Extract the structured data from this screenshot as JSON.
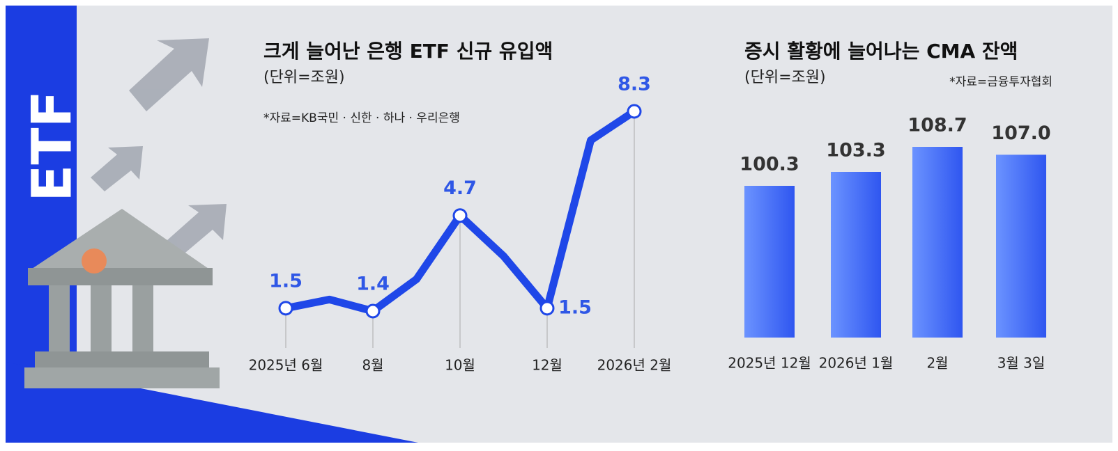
{
  "sidebar": {
    "label": "ETF"
  },
  "chart_data": [
    {
      "type": "line",
      "title": "크게 늘어난 은행 ETF 신규 유입액",
      "subtitle": "(단위=조원)",
      "source": "*자료=KB국민 · 신한 · 하나 · 우리은행",
      "categories": [
        "2025년 6월",
        null,
        "8월",
        null,
        "10월",
        null,
        "12월",
        null,
        "2026년 2월"
      ],
      "values": [
        1.5,
        1.8,
        1.4,
        2.5,
        4.7,
        3.3,
        1.5,
        7.3,
        8.3
      ],
      "color": "#1f47e8",
      "label_color": "#2f57e6"
    },
    {
      "type": "bar",
      "title": "증시 활황에 늘어나는 CMA 잔액",
      "subtitle": "(단위=조원)",
      "source": "*자료=금융투자협회",
      "categories": [
        "2025년 12월",
        "2026년 1월",
        "2월",
        "3월 3일"
      ],
      "values": [
        100.3,
        103.3,
        108.7,
        107.0
      ],
      "value_labels": [
        "100.3",
        "103.3",
        "108.7",
        "107.0"
      ],
      "color": "#3a62f5",
      "label_color": "#333333"
    }
  ]
}
